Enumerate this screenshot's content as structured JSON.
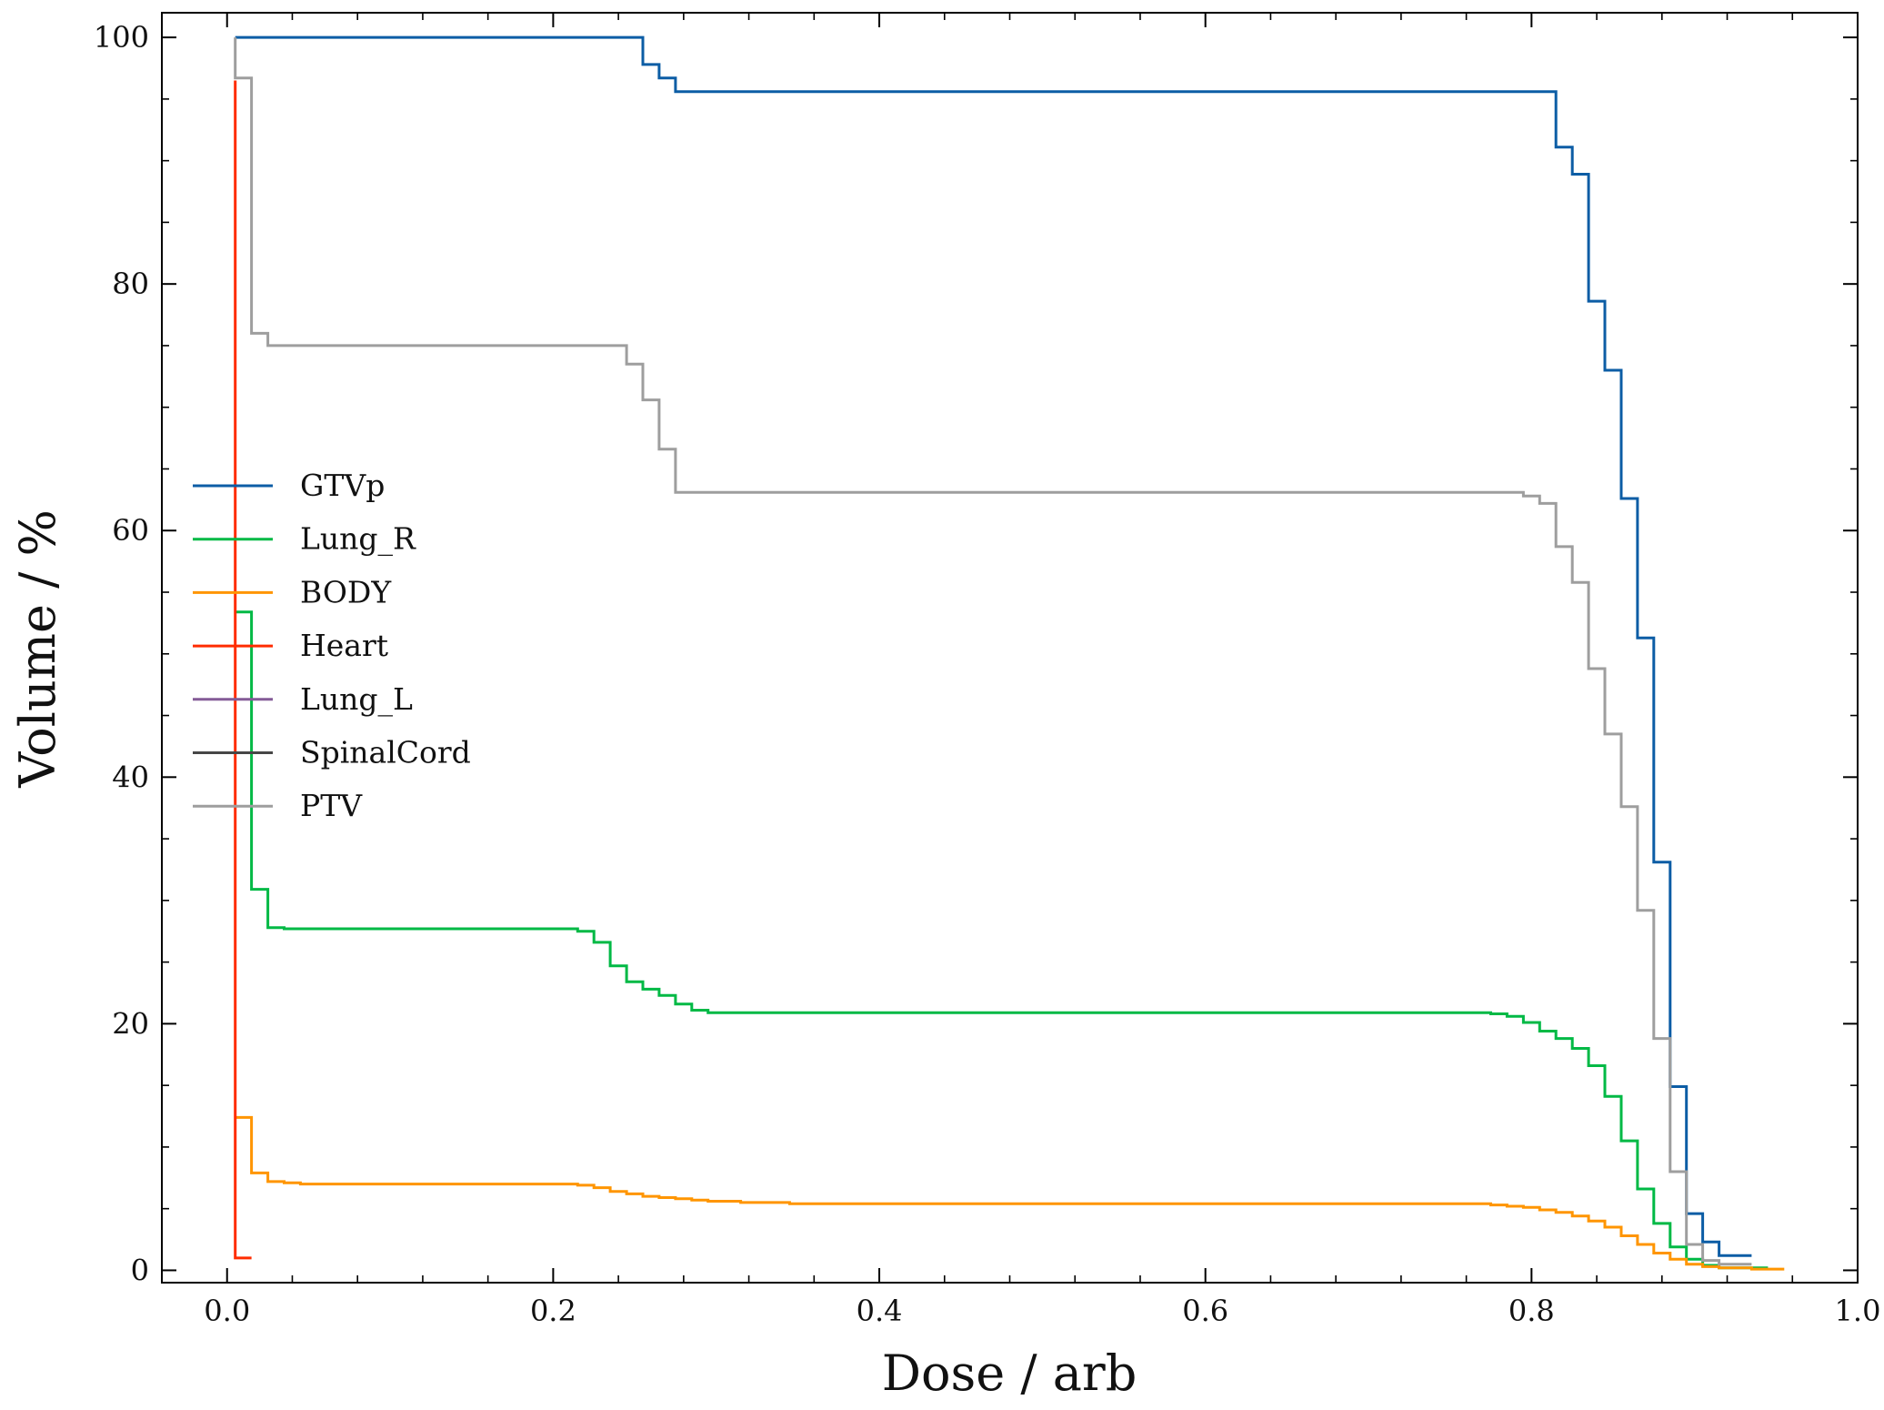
{
  "chart_data": {
    "type": "line",
    "xlabel": "Dose / arb",
    "ylabel": "Volume / %",
    "xlim": [
      -0.04,
      1.0
    ],
    "ylim": [
      -1,
      102
    ],
    "x_ticks": [
      0.0,
      0.2,
      0.4,
      0.6,
      0.8,
      1.0
    ],
    "x_tick_labels": [
      "0.0",
      "0.2",
      "0.4",
      "0.6",
      "0.8",
      "1.0"
    ],
    "y_ticks": [
      0,
      20,
      40,
      60,
      80,
      100
    ],
    "y_tick_labels": [
      "0",
      "20",
      "40",
      "60",
      "80",
      "100"
    ],
    "grid": false,
    "legend_position": "center-left",
    "step": true,
    "series": [
      {
        "name": "GTVp",
        "color": "#0c5da5",
        "points": [
          [
            0.005,
            100
          ],
          [
            0.255,
            100
          ],
          [
            0.255,
            97.8
          ],
          [
            0.265,
            97.8
          ],
          [
            0.265,
            96.7
          ],
          [
            0.275,
            96.7
          ],
          [
            0.275,
            95.6
          ],
          [
            0.815,
            95.6
          ],
          [
            0.815,
            91.1
          ],
          [
            0.825,
            91.1
          ],
          [
            0.825,
            88.9
          ],
          [
            0.835,
            88.9
          ],
          [
            0.835,
            78.6
          ],
          [
            0.845,
            78.6
          ],
          [
            0.845,
            73
          ],
          [
            0.855,
            73
          ],
          [
            0.855,
            62.6
          ],
          [
            0.865,
            62.6
          ],
          [
            0.865,
            51.3
          ],
          [
            0.875,
            51.3
          ],
          [
            0.875,
            33.1
          ],
          [
            0.885,
            33.1
          ],
          [
            0.885,
            14.9
          ],
          [
            0.895,
            14.9
          ],
          [
            0.895,
            4.6
          ],
          [
            0.905,
            4.6
          ],
          [
            0.905,
            2.3
          ],
          [
            0.915,
            2.3
          ],
          [
            0.915,
            1.2
          ],
          [
            0.935,
            1.2
          ]
        ]
      },
      {
        "name": "Lung_R",
        "color": "#00b945",
        "points": [
          [
            0.005,
            53.4
          ],
          [
            0.015,
            53.4
          ],
          [
            0.015,
            30.9
          ],
          [
            0.025,
            30.9
          ],
          [
            0.025,
            27.8
          ],
          [
            0.035,
            27.8
          ],
          [
            0.035,
            27.7
          ],
          [
            0.215,
            27.7
          ],
          [
            0.215,
            27.5
          ],
          [
            0.225,
            27.5
          ],
          [
            0.225,
            26.6
          ],
          [
            0.235,
            26.6
          ],
          [
            0.235,
            24.7
          ],
          [
            0.245,
            24.7
          ],
          [
            0.245,
            23.4
          ],
          [
            0.255,
            23.4
          ],
          [
            0.255,
            22.8
          ],
          [
            0.265,
            22.8
          ],
          [
            0.265,
            22.3
          ],
          [
            0.275,
            22.3
          ],
          [
            0.275,
            21.6
          ],
          [
            0.285,
            21.6
          ],
          [
            0.285,
            21.1
          ],
          [
            0.295,
            21.1
          ],
          [
            0.295,
            20.9
          ],
          [
            0.775,
            20.9
          ],
          [
            0.775,
            20.8
          ],
          [
            0.785,
            20.8
          ],
          [
            0.785,
            20.6
          ],
          [
            0.795,
            20.6
          ],
          [
            0.795,
            20.1
          ],
          [
            0.805,
            20.1
          ],
          [
            0.805,
            19.4
          ],
          [
            0.815,
            19.4
          ],
          [
            0.815,
            18.8
          ],
          [
            0.825,
            18.8
          ],
          [
            0.825,
            18
          ],
          [
            0.835,
            18
          ],
          [
            0.835,
            16.6
          ],
          [
            0.845,
            16.6
          ],
          [
            0.845,
            14.1
          ],
          [
            0.855,
            14.1
          ],
          [
            0.855,
            10.5
          ],
          [
            0.865,
            10.5
          ],
          [
            0.865,
            6.6
          ],
          [
            0.875,
            6.6
          ],
          [
            0.875,
            3.8
          ],
          [
            0.885,
            3.8
          ],
          [
            0.885,
            1.9
          ],
          [
            0.895,
            1.9
          ],
          [
            0.895,
            0.9
          ],
          [
            0.905,
            0.9
          ],
          [
            0.905,
            0.4
          ],
          [
            0.915,
            0.4
          ],
          [
            0.915,
            0.2
          ],
          [
            0.945,
            0.2
          ]
        ]
      },
      {
        "name": "BODY",
        "color": "#ff9500",
        "points": [
          [
            0.005,
            12.4
          ],
          [
            0.015,
            12.4
          ],
          [
            0.015,
            7.9
          ],
          [
            0.025,
            7.9
          ],
          [
            0.025,
            7.2
          ],
          [
            0.035,
            7.2
          ],
          [
            0.035,
            7.1
          ],
          [
            0.045,
            7.1
          ],
          [
            0.045,
            7
          ],
          [
            0.215,
            7
          ],
          [
            0.215,
            6.9
          ],
          [
            0.225,
            6.9
          ],
          [
            0.225,
            6.7
          ],
          [
            0.235,
            6.7
          ],
          [
            0.235,
            6.4
          ],
          [
            0.245,
            6.4
          ],
          [
            0.245,
            6.2
          ],
          [
            0.255,
            6.2
          ],
          [
            0.255,
            6
          ],
          [
            0.265,
            6
          ],
          [
            0.265,
            5.9
          ],
          [
            0.275,
            5.9
          ],
          [
            0.275,
            5.8
          ],
          [
            0.285,
            5.8
          ],
          [
            0.285,
            5.7
          ],
          [
            0.295,
            5.7
          ],
          [
            0.295,
            5.6
          ],
          [
            0.315,
            5.6
          ],
          [
            0.315,
            5.5
          ],
          [
            0.345,
            5.5
          ],
          [
            0.345,
            5.4
          ],
          [
            0.775,
            5.4
          ],
          [
            0.775,
            5.3
          ],
          [
            0.785,
            5.3
          ],
          [
            0.785,
            5.2
          ],
          [
            0.795,
            5.2
          ],
          [
            0.795,
            5.1
          ],
          [
            0.805,
            5.1
          ],
          [
            0.805,
            4.9
          ],
          [
            0.815,
            4.9
          ],
          [
            0.815,
            4.7
          ],
          [
            0.825,
            4.7
          ],
          [
            0.825,
            4.4
          ],
          [
            0.835,
            4.4
          ],
          [
            0.835,
            4
          ],
          [
            0.845,
            4
          ],
          [
            0.845,
            3.5
          ],
          [
            0.855,
            3.5
          ],
          [
            0.855,
            2.8
          ],
          [
            0.865,
            2.8
          ],
          [
            0.865,
            2.1
          ],
          [
            0.875,
            2.1
          ],
          [
            0.875,
            1.4
          ],
          [
            0.885,
            1.4
          ],
          [
            0.885,
            0.9
          ],
          [
            0.895,
            0.9
          ],
          [
            0.895,
            0.5
          ],
          [
            0.905,
            0.5
          ],
          [
            0.905,
            0.3
          ],
          [
            0.915,
            0.3
          ],
          [
            0.915,
            0.2
          ],
          [
            0.935,
            0.2
          ],
          [
            0.935,
            0.1
          ],
          [
            0.955,
            0.1
          ]
        ]
      },
      {
        "name": "Heart",
        "color": "#ff2c00",
        "points": [
          [
            0.005,
            96.5
          ],
          [
            0.005,
            1
          ],
          [
            0.015,
            1
          ]
        ]
      },
      {
        "name": "Lung_L",
        "color": "#845b97",
        "points": []
      },
      {
        "name": "SpinalCord",
        "color": "#474747",
        "points": []
      },
      {
        "name": "PTV",
        "color": "#9e9e9e",
        "points": [
          [
            0.005,
            100
          ],
          [
            0.005,
            96.7
          ],
          [
            0.015,
            96.7
          ],
          [
            0.015,
            76
          ],
          [
            0.025,
            76
          ],
          [
            0.025,
            75
          ],
          [
            0.245,
            75
          ],
          [
            0.245,
            73.5
          ],
          [
            0.255,
            73.5
          ],
          [
            0.255,
            70.6
          ],
          [
            0.265,
            70.6
          ],
          [
            0.265,
            66.6
          ],
          [
            0.275,
            66.6
          ],
          [
            0.275,
            63.1
          ],
          [
            0.795,
            63.1
          ],
          [
            0.795,
            62.8
          ],
          [
            0.805,
            62.8
          ],
          [
            0.805,
            62.2
          ],
          [
            0.815,
            62.2
          ],
          [
            0.815,
            58.7
          ],
          [
            0.825,
            58.7
          ],
          [
            0.825,
            55.8
          ],
          [
            0.835,
            55.8
          ],
          [
            0.835,
            48.8
          ],
          [
            0.845,
            48.8
          ],
          [
            0.845,
            43.5
          ],
          [
            0.855,
            43.5
          ],
          [
            0.855,
            37.6
          ],
          [
            0.865,
            37.6
          ],
          [
            0.865,
            29.2
          ],
          [
            0.875,
            29.2
          ],
          [
            0.875,
            18.8
          ],
          [
            0.885,
            18.8
          ],
          [
            0.885,
            8
          ],
          [
            0.895,
            8
          ],
          [
            0.895,
            2.1
          ],
          [
            0.905,
            2.1
          ],
          [
            0.905,
            0.8
          ],
          [
            0.915,
            0.8
          ],
          [
            0.915,
            0.5
          ],
          [
            0.935,
            0.5
          ]
        ]
      }
    ]
  }
}
